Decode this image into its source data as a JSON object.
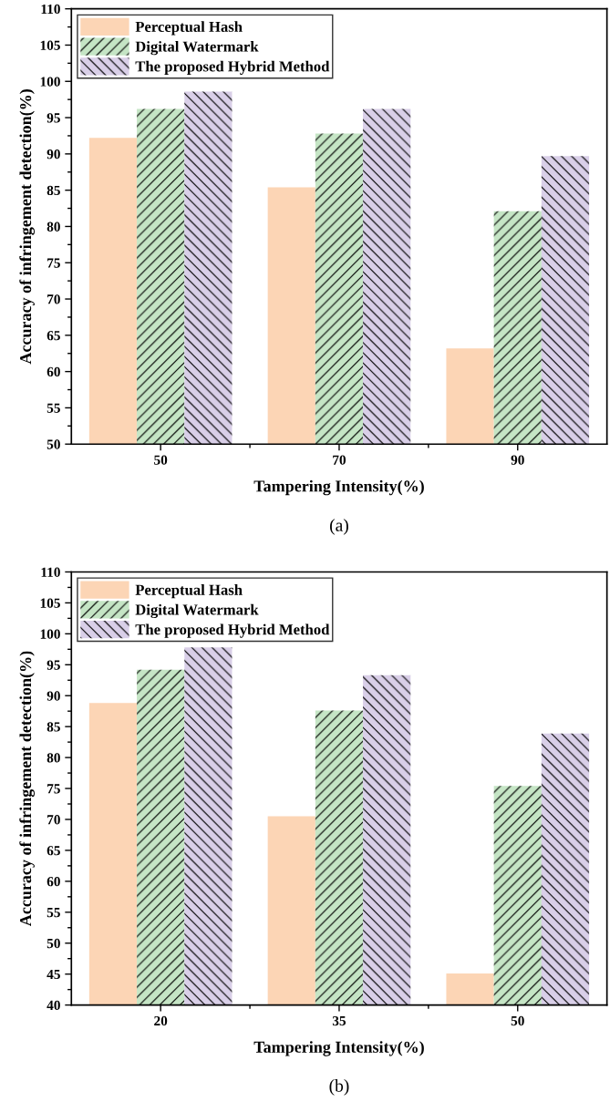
{
  "chart_data": [
    {
      "type": "bar",
      "categories": [
        "50",
        "70",
        "90"
      ],
      "xlabel": "Tampering Intensity(%)",
      "ylabel": "Accuracy of infringement detection(%)",
      "ylim": [
        50,
        110
      ],
      "yticks": [
        50,
        55,
        60,
        65,
        70,
        75,
        80,
        85,
        90,
        95,
        100,
        105,
        110
      ],
      "legend": "top left",
      "grid": false,
      "annotations": [
        "(a)"
      ],
      "series": [
        {
          "name": "Perceptual Hash",
          "color": "#fcd5b5",
          "values": [
            92.2,
            85.4,
            63.2
          ]
        },
        {
          "name": "Digital Watermark",
          "color": "#c5e5c5",
          "values": [
            96.2,
            92.8,
            82.1
          ]
        },
        {
          "name": "The proposed Hybrid Method",
          "color": "#d9cfe8",
          "values": [
            98.6,
            96.2,
            89.7
          ]
        }
      ]
    },
    {
      "type": "bar",
      "categories": [
        "20",
        "35",
        "50"
      ],
      "xlabel": "Tampering Intensity(%)",
      "ylabel": "Accuracy of infringement detection(%)",
      "ylim": [
        40,
        110
      ],
      "yticks": [
        40,
        45,
        50,
        55,
        60,
        65,
        70,
        75,
        80,
        85,
        90,
        95,
        100,
        105,
        110
      ],
      "legend": "top left",
      "grid": false,
      "annotations": [
        "(b)"
      ],
      "series": [
        {
          "name": "Perceptual Hash",
          "color": "#fcd5b5",
          "values": [
            88.8,
            70.5,
            45.1
          ]
        },
        {
          "name": "Digital Watermark",
          "color": "#c5e5c5",
          "values": [
            94.2,
            87.6,
            75.4
          ]
        },
        {
          "name": "The proposed Hybrid Method",
          "color": "#d9cfe8",
          "values": [
            97.8,
            93.3,
            83.9
          ]
        }
      ]
    }
  ]
}
